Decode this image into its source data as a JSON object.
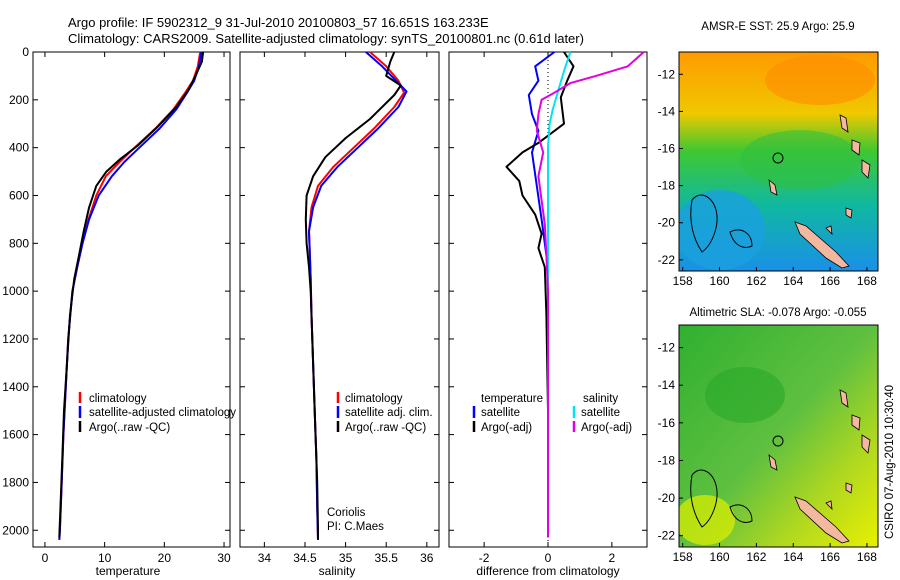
{
  "figure": {
    "title_line1": "Argo profile: IF 5902312_9 31-Jul-2010 20100803_57 16.651S 163.233E",
    "title_line2": "Climatology: CARS2009. Satellite-adjusted climatology: synTS_20100801.nc (0.61d later)",
    "credit": "CSIRO 07-Aug-2010 10:30:40",
    "colors": {
      "climatology": "#ff0000",
      "satellite": "#0000ff",
      "argo": "#000000",
      "sal_satellite": "#00e5ee",
      "sal_argo": "#e000e0"
    }
  },
  "chart_data": [
    {
      "id": "temperature",
      "type": "line",
      "xlabel": "temperature",
      "ylabel": "",
      "xlim": [
        -2,
        31
      ],
      "ylim": [
        2070,
        0
      ],
      "y_reversed": true,
      "xticks": [
        0,
        10,
        20,
        30
      ],
      "yticks": [
        0,
        200,
        400,
        600,
        800,
        1000,
        1200,
        1400,
        1600,
        1800,
        2000
      ],
      "legend": {
        "placement": "lower-right",
        "entries": [
          "climatology",
          "satellite-adjusted climatology",
          "Argo(..raw -QC)"
        ]
      },
      "series": [
        {
          "name": "climatology",
          "color": "#ff0000",
          "points": [
            [
              26,
              0
            ],
            [
              25.6,
              60
            ],
            [
              24.8,
              120
            ],
            [
              23.5,
              170
            ],
            [
              21.5,
              240
            ],
            [
              18.5,
              320
            ],
            [
              15,
              400
            ],
            [
              12.5,
              460
            ],
            [
              10.2,
              520
            ],
            [
              8.6,
              600
            ],
            [
              7.3,
              700
            ],
            [
              6.3,
              800
            ],
            [
              5.4,
              900
            ],
            [
              4.6,
              1000
            ],
            [
              3.9,
              1200
            ],
            [
              3.5,
              1400
            ],
            [
              3.1,
              1600
            ],
            [
              2.8,
              1800
            ],
            [
              2.5,
              2000
            ],
            [
              2.4,
              2040
            ]
          ]
        },
        {
          "name": "satellite-adjusted climatology",
          "color": "#0000ff",
          "points": [
            [
              26.2,
              0
            ],
            [
              25.8,
              60
            ],
            [
              25.0,
              120
            ],
            [
              23.8,
              170
            ],
            [
              22,
              240
            ],
            [
              19.2,
              320
            ],
            [
              15.8,
              400
            ],
            [
              13.3,
              460
            ],
            [
              11.2,
              520
            ],
            [
              9.0,
              600
            ],
            [
              7.4,
              700
            ],
            [
              6.3,
              800
            ],
            [
              5.4,
              900
            ],
            [
              4.6,
              1000
            ],
            [
              3.9,
              1200
            ],
            [
              3.5,
              1400
            ],
            [
              3.1,
              1600
            ],
            [
              2.8,
              1800
            ],
            [
              2.5,
              2000
            ],
            [
              2.4,
              2040
            ]
          ]
        },
        {
          "name": "Argo(..raw -QC)",
          "color": "#000000",
          "points": [
            [
              26.5,
              0
            ],
            [
              26.3,
              40
            ],
            [
              25.2,
              100
            ],
            [
              24.0,
              160
            ],
            [
              22,
              230
            ],
            [
              19,
              310
            ],
            [
              15.6,
              390
            ],
            [
              12.5,
              450
            ],
            [
              10.3,
              500
            ],
            [
              8.6,
              560
            ],
            [
              7.4,
              650
            ],
            [
              6.5,
              750
            ],
            [
              5.7,
              850
            ],
            [
              4.9,
              950
            ],
            [
              4.2,
              1100
            ],
            [
              3.7,
              1300
            ],
            [
              3.2,
              1500
            ],
            [
              2.9,
              1700
            ],
            [
              2.6,
              1900
            ],
            [
              2.4,
              2030
            ]
          ]
        }
      ]
    },
    {
      "id": "salinity",
      "type": "line",
      "xlabel": "salinity",
      "ylabel": "",
      "xlim": [
        33.7,
        36.15
      ],
      "ylim": [
        2070,
        0
      ],
      "y_reversed": true,
      "xticks": [
        34,
        34.5,
        35,
        35.5,
        36
      ],
      "legend": {
        "placement": "lower-right",
        "entries": [
          "climatology",
          "satellite adj. clim.",
          "Argo(..raw -QC)"
        ]
      },
      "annotation": [
        "Coriolis",
        "PI: C.Maes"
      ],
      "series": [
        {
          "name": "climatology",
          "color": "#ff0000",
          "points": [
            [
              35.3,
              0
            ],
            [
              35.5,
              60
            ],
            [
              35.65,
              120
            ],
            [
              35.72,
              170
            ],
            [
              35.6,
              230
            ],
            [
              35.35,
              320
            ],
            [
              35.1,
              400
            ],
            [
              34.85,
              480
            ],
            [
              34.66,
              560
            ],
            [
              34.58,
              650
            ],
            [
              34.55,
              750
            ],
            [
              34.56,
              850
            ],
            [
              34.57,
              950
            ],
            [
              34.58,
              1100
            ],
            [
              34.6,
              1300
            ],
            [
              34.62,
              1500
            ],
            [
              34.64,
              1700
            ],
            [
              34.65,
              1900
            ],
            [
              34.66,
              2040
            ]
          ]
        },
        {
          "name": "satellite adj. clim.",
          "color": "#0000ff",
          "points": [
            [
              35.25,
              0
            ],
            [
              35.45,
              60
            ],
            [
              35.62,
              120
            ],
            [
              35.75,
              165
            ],
            [
              35.65,
              230
            ],
            [
              35.4,
              320
            ],
            [
              35.15,
              400
            ],
            [
              34.9,
              480
            ],
            [
              34.7,
              560
            ],
            [
              34.6,
              650
            ],
            [
              34.55,
              750
            ],
            [
              34.56,
              850
            ],
            [
              34.57,
              950
            ],
            [
              34.58,
              1100
            ],
            [
              34.6,
              1300
            ],
            [
              34.62,
              1500
            ],
            [
              34.64,
              1700
            ],
            [
              34.65,
              1900
            ],
            [
              34.66,
              2040
            ]
          ]
        },
        {
          "name": "Argo(..raw -QC)",
          "color": "#000000",
          "points": [
            [
              35.6,
              0
            ],
            [
              35.55,
              40
            ],
            [
              35.5,
              100
            ],
            [
              35.68,
              140
            ],
            [
              35.6,
              180
            ],
            [
              35.3,
              280
            ],
            [
              35.0,
              360
            ],
            [
              34.75,
              440
            ],
            [
              34.6,
              520
            ],
            [
              34.52,
              600
            ],
            [
              34.51,
              700
            ],
            [
              34.52,
              800
            ],
            [
              34.55,
              900
            ],
            [
              34.57,
              1000
            ],
            [
              34.59,
              1200
            ],
            [
              34.61,
              1400
            ],
            [
              34.63,
              1600
            ],
            [
              34.65,
              1800
            ],
            [
              34.66,
              2000
            ],
            [
              34.66,
              2040
            ]
          ]
        }
      ]
    },
    {
      "id": "difference",
      "type": "line",
      "xlabel": "difference from climatology",
      "ylabel": "",
      "xlim": [
        -3.1,
        3.1
      ],
      "ylim": [
        2070,
        0
      ],
      "y_reversed": true,
      "xticks": [
        -2,
        0,
        2
      ],
      "legend": {
        "placement": "lower-center",
        "headers": [
          "temperature",
          "salinity"
        ],
        "entries": [
          "satellite",
          "Argo(-adj)",
          "satellite",
          "Argo(-adj)"
        ]
      },
      "series": [
        {
          "name": "temperature satellite",
          "color": "#0000ff",
          "points": [
            [
              0.2,
              0
            ],
            [
              -0.4,
              60
            ],
            [
              -0.3,
              120
            ],
            [
              -0.6,
              180
            ],
            [
              -0.5,
              260
            ],
            [
              -0.3,
              330
            ],
            [
              -0.5,
              420
            ],
            [
              -0.35,
              560
            ],
            [
              -0.2,
              700
            ],
            [
              -0.1,
              800
            ],
            [
              0,
              900
            ],
            [
              0,
              1100
            ],
            [
              0,
              1500
            ],
            [
              0,
              2030
            ]
          ]
        },
        {
          "name": "temperature Argo(-adj)",
          "color": "#000000",
          "points": [
            [
              0.5,
              0
            ],
            [
              0.8,
              60
            ],
            [
              0.6,
              120
            ],
            [
              0.4,
              190
            ],
            [
              0.5,
              300
            ],
            [
              -0.3,
              380
            ],
            [
              -0.8,
              420
            ],
            [
              -1.3,
              480
            ],
            [
              -0.9,
              540
            ],
            [
              -0.8,
              600
            ],
            [
              -0.4,
              680
            ],
            [
              -0.2,
              760
            ],
            [
              -0.3,
              820
            ],
            [
              -0.1,
              900
            ],
            [
              -0.05,
              1100
            ],
            [
              0,
              1500
            ],
            [
              0,
              2030
            ]
          ]
        },
        {
          "name": "salinity satellite",
          "color": "#00e5ee",
          "points": [
            [
              0.7,
              0
            ],
            [
              0.5,
              80
            ],
            [
              0.3,
              170
            ],
            [
              0.15,
              240
            ],
            [
              0.05,
              300
            ],
            [
              0,
              400
            ],
            [
              0,
              600
            ],
            [
              0,
              1000
            ],
            [
              0,
              1600
            ],
            [
              0,
              2030
            ]
          ]
        },
        {
          "name": "salinity Argo(-adj)",
          "color": "#e000e0",
          "points": [
            [
              3.0,
              0
            ],
            [
              2.5,
              60
            ],
            [
              1.5,
              100
            ],
            [
              0.7,
              130
            ],
            [
              0.2,
              170
            ],
            [
              -0.2,
              200
            ],
            [
              -0.3,
              260
            ],
            [
              -0.35,
              330
            ],
            [
              -0.15,
              420
            ],
            [
              -0.3,
              520
            ],
            [
              -0.2,
              620
            ],
            [
              -0.1,
              720
            ],
            [
              -0.05,
              850
            ],
            [
              0,
              1000
            ],
            [
              0,
              1500
            ],
            [
              0,
              2030
            ]
          ]
        }
      ]
    },
    {
      "id": "sst_map",
      "type": "heatmap",
      "title": "AMSR-E SST: 25.9 Argo: 25.9",
      "xlim": [
        157.8,
        168.6
      ],
      "ylim": [
        -22.6,
        -10.8
      ],
      "xticks": [
        158,
        160,
        162,
        164,
        166,
        168
      ],
      "yticks": [
        -12,
        -14,
        -16,
        -18,
        -20,
        -22
      ],
      "argo_position": {
        "lon": 163.233,
        "lat": -16.651
      }
    },
    {
      "id": "sla_map",
      "type": "heatmap",
      "title": "Altimetric SLA: -0.078 Argo: -0.055",
      "xlim": [
        157.8,
        168.6
      ],
      "ylim": [
        -22.6,
        -10.8
      ],
      "xticks": [
        158,
        160,
        162,
        164,
        166,
        168
      ],
      "yticks": [
        -12,
        -14,
        -16,
        -18,
        -20,
        -22
      ],
      "argo_position": {
        "lon": 163.233,
        "lat": -16.651
      }
    }
  ]
}
